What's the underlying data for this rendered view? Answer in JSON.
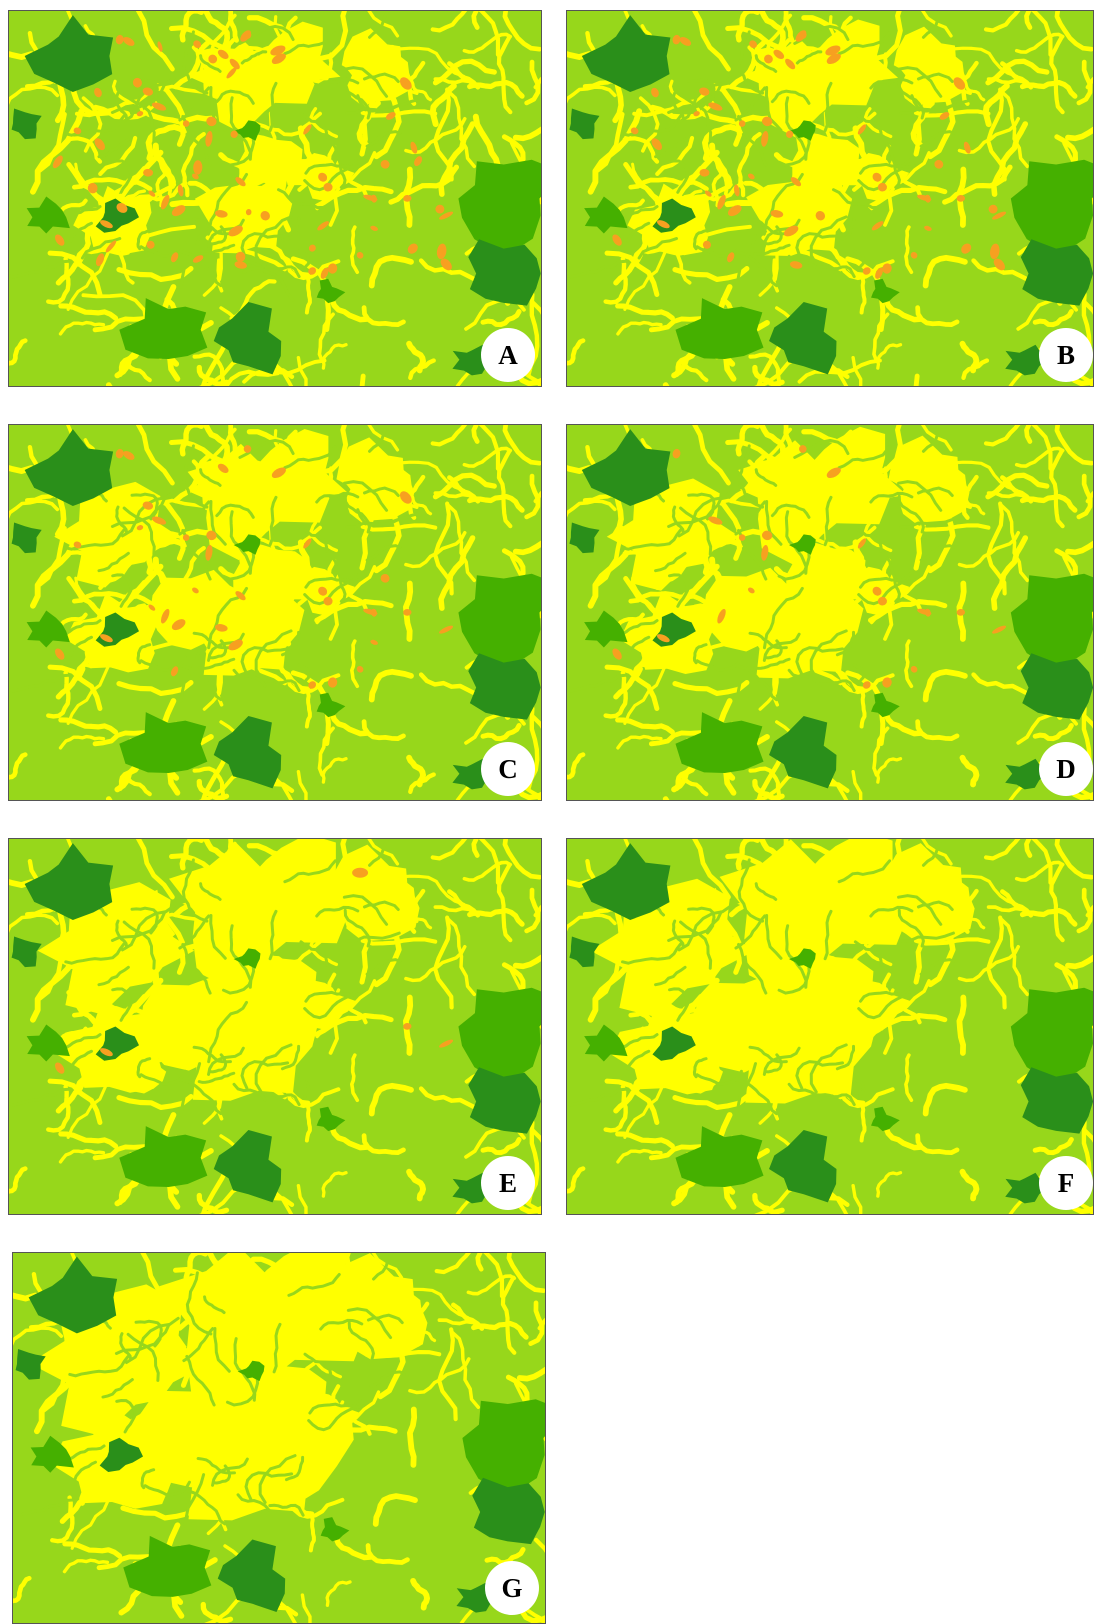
{
  "colors": {
    "yellow": "#ffff00",
    "light_green": "#97d71b",
    "mid_green": "#45b000",
    "dark_green": "#2a8f1a",
    "orange": "#f7a020"
  },
  "panels": [
    {
      "label": "A",
      "orange_amount": 1.0,
      "yellow_level": 0.25
    },
    {
      "label": "B",
      "orange_amount": 0.8,
      "yellow_level": 0.3
    },
    {
      "label": "C",
      "orange_amount": 0.5,
      "yellow_level": 0.4
    },
    {
      "label": "D",
      "orange_amount": 0.3,
      "yellow_level": 0.45
    },
    {
      "label": "E",
      "orange_amount": 0.05,
      "yellow_level": 0.6
    },
    {
      "label": "F",
      "orange_amount": 0.0,
      "yellow_level": 0.65
    },
    {
      "label": "G",
      "orange_amount": 0.0,
      "yellow_level": 0.75
    }
  ]
}
